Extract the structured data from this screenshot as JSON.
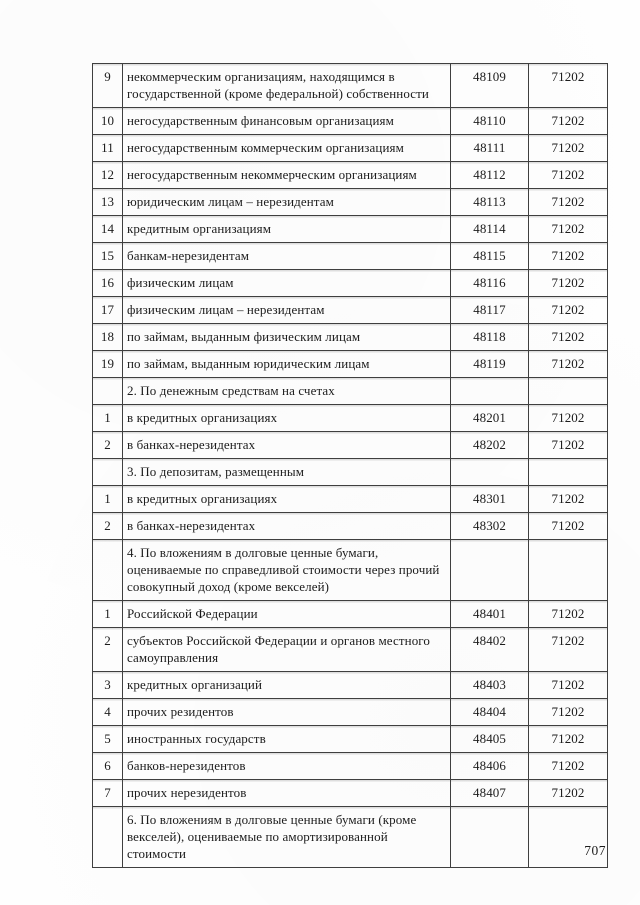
{
  "page": {
    "number": "707"
  },
  "table": {
    "rows": [
      {
        "num": "9",
        "desc": "некоммерческим организациям, находящимся в государственной (кроме федеральной) собственности",
        "code": "48109",
        "symbol": "71202",
        "section": false
      },
      {
        "num": "10",
        "desc": "негосударственным финансовым организациям",
        "code": "48110",
        "symbol": "71202",
        "section": false
      },
      {
        "num": "11",
        "desc": "негосударственным коммерческим организациям",
        "code": "48111",
        "symbol": "71202",
        "section": false
      },
      {
        "num": "12",
        "desc": "негосударственным некоммерческим организациям",
        "code": "48112",
        "symbol": "71202",
        "section": false
      },
      {
        "num": "13",
        "desc": "юридическим лицам – нерезидентам",
        "code": "48113",
        "symbol": "71202",
        "section": false
      },
      {
        "num": "14",
        "desc": "кредитным организациям",
        "code": "48114",
        "symbol": "71202",
        "section": false
      },
      {
        "num": "15",
        "desc": "банкам-нерезидентам",
        "code": "48115",
        "symbol": "71202",
        "section": false
      },
      {
        "num": "16",
        "desc": "физическим лицам",
        "code": "48116",
        "symbol": "71202",
        "section": false
      },
      {
        "num": "17",
        "desc": "физическим лицам – нерезидентам",
        "code": "48117",
        "symbol": "71202",
        "section": false
      },
      {
        "num": "18",
        "desc": "по займам, выданным физическим лицам",
        "code": "48118",
        "symbol": "71202",
        "section": false
      },
      {
        "num": "19",
        "desc": "по займам, выданным юридическим лицам",
        "code": "48119",
        "symbol": "71202",
        "section": false
      },
      {
        "num": "",
        "desc": "2. По денежным средствам на счетах",
        "code": "",
        "symbol": "",
        "section": true
      },
      {
        "num": "1",
        "desc": "в кредитных организациях",
        "code": "48201",
        "symbol": "71202",
        "section": false
      },
      {
        "num": "2",
        "desc": "в банках-нерезидентах",
        "code": "48202",
        "symbol": "71202",
        "section": false
      },
      {
        "num": "",
        "desc": "3. По депозитам, размещенным",
        "code": "",
        "symbol": "",
        "section": true
      },
      {
        "num": "1",
        "desc": "в кредитных организациях",
        "code": "48301",
        "symbol": "71202",
        "section": false
      },
      {
        "num": "2",
        "desc": "в банках-нерезидентах",
        "code": "48302",
        "symbol": "71202",
        "section": false
      },
      {
        "num": "",
        "desc": "4. По вложениям в долговые ценные бумаги, оцениваемые по справедливой стоимости через прочий совокупный доход (кроме векселей)",
        "code": "",
        "symbol": "",
        "section": true
      },
      {
        "num": "1",
        "desc": "Российской Федерации",
        "code": "48401",
        "symbol": "71202",
        "section": false
      },
      {
        "num": "2",
        "desc": "субъектов Российской Федерации и органов местного самоуправления",
        "code": "48402",
        "symbol": "71202",
        "section": false
      },
      {
        "num": "3",
        "desc": "кредитных организаций",
        "code": "48403",
        "symbol": "71202",
        "section": false
      },
      {
        "num": "4",
        "desc": "прочих резидентов",
        "code": "48404",
        "symbol": "71202",
        "section": false
      },
      {
        "num": "5",
        "desc": "иностранных государств",
        "code": "48405",
        "symbol": "71202",
        "section": false
      },
      {
        "num": "6",
        "desc": "банков-нерезидентов",
        "code": "48406",
        "symbol": "71202",
        "section": false
      },
      {
        "num": "7",
        "desc": "прочих нерезидентов",
        "code": "48407",
        "symbol": "71202",
        "section": false
      },
      {
        "num": "",
        "desc": "6. По вложениям в долговые ценные бумаги (кроме векселей), оцениваемые по амортизированной стоимости",
        "code": "",
        "symbol": "",
        "section": true
      }
    ]
  }
}
